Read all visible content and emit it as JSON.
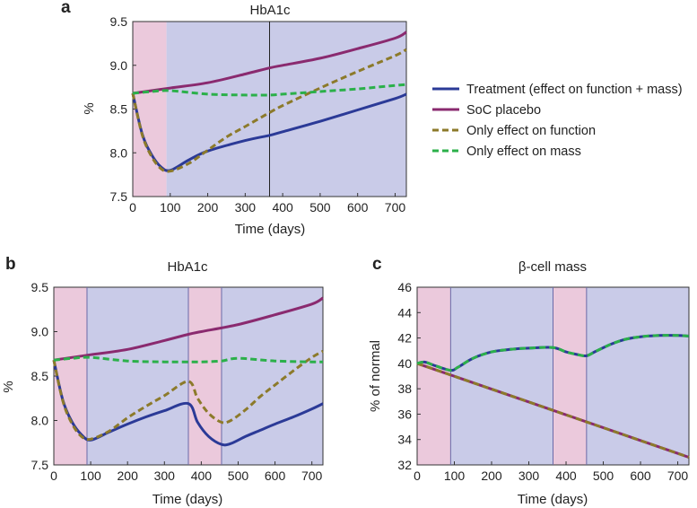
{
  "colors": {
    "treatment": "#2b3a97",
    "placebo": "#8a2a6f",
    "function_only": "#8c7a2a",
    "mass_only": "#2bb04a",
    "shade_pink": "#ebc9dc",
    "shade_blue": "#c9cbe8"
  },
  "legend": {
    "items": [
      {
        "key": "treatment",
        "label": "Treatment (effect on function + mass)",
        "dashed": false
      },
      {
        "key": "placebo",
        "label": "SoC placebo",
        "dashed": false
      },
      {
        "key": "function_only",
        "label": "Only effect on function",
        "dashed": true
      },
      {
        "key": "mass_only",
        "label": "Only effect on mass",
        "dashed": true
      }
    ]
  },
  "chart_data": [
    {
      "panel_label": "a",
      "type": "line",
      "title": "HbA1c",
      "xlabel": "Time (days)",
      "ylabel": "%",
      "xlim": [
        0,
        730
      ],
      "ylim": [
        7.5,
        9.5
      ],
      "x_ticks": [
        "0",
        "100",
        "200",
        "300",
        "400",
        "500",
        "600",
        "700"
      ],
      "y_ticks": [
        "7.5",
        "8.0",
        "8.5",
        "9.0",
        "9.5"
      ],
      "shaded_regions": [
        {
          "x": [
            0,
            90
          ],
          "color": "pink"
        },
        {
          "x": [
            90,
            730
          ],
          "color": "blue"
        }
      ],
      "vlines": [
        365
      ],
      "series": [
        {
          "key": "treatment",
          "x": [
            0,
            25,
            50,
            75,
            100,
            150,
            200,
            300,
            365,
            400,
            500,
            600,
            700,
            730
          ],
          "y": [
            8.68,
            8.22,
            7.98,
            7.84,
            7.8,
            7.92,
            8.02,
            8.14,
            8.2,
            8.24,
            8.36,
            8.49,
            8.62,
            8.67
          ]
        },
        {
          "key": "placebo",
          "x": [
            0,
            100,
            200,
            300,
            365,
            400,
            500,
            600,
            700,
            730
          ],
          "y": [
            8.68,
            8.74,
            8.8,
            8.9,
            8.97,
            9.0,
            9.08,
            9.19,
            9.31,
            9.38
          ]
        },
        {
          "key": "function_only",
          "x": [
            0,
            25,
            50,
            75,
            100,
            150,
            200,
            250,
            300,
            365,
            400,
            500,
            600,
            700,
            730
          ],
          "y": [
            8.68,
            8.21,
            7.96,
            7.82,
            7.79,
            7.88,
            8.03,
            8.18,
            8.3,
            8.46,
            8.54,
            8.74,
            8.93,
            9.11,
            9.18
          ]
        },
        {
          "key": "mass_only",
          "x": [
            0,
            50,
            100,
            200,
            300,
            365,
            400,
            500,
            600,
            700,
            730
          ],
          "y": [
            8.68,
            8.7,
            8.71,
            8.67,
            8.66,
            8.66,
            8.67,
            8.7,
            8.73,
            8.77,
            8.78
          ]
        }
      ]
    },
    {
      "panel_label": "b",
      "type": "line",
      "title": "HbA1c",
      "xlabel": "Time (days)",
      "ylabel": "%",
      "xlim": [
        0,
        730
      ],
      "ylim": [
        7.5,
        9.5
      ],
      "x_ticks": [
        "0",
        "100",
        "200",
        "300",
        "400",
        "500",
        "600",
        "700"
      ],
      "y_ticks": [
        "7.5",
        "8.0",
        "8.5",
        "9.0",
        "9.5"
      ],
      "shaded_regions": [
        {
          "x": [
            0,
            90
          ],
          "color": "pink"
        },
        {
          "x": [
            90,
            365
          ],
          "color": "blue"
        },
        {
          "x": [
            365,
            455
          ],
          "color": "pink"
        },
        {
          "x": [
            455,
            730
          ],
          "color": "blue"
        }
      ],
      "vlines": [
        90,
        365,
        455
      ],
      "series": [
        {
          "key": "treatment",
          "x": [
            0,
            25,
            50,
            75,
            100,
            150,
            200,
            250,
            300,
            365,
            390,
            420,
            455,
            480,
            520,
            560,
            600,
            650,
            700,
            730
          ],
          "y": [
            8.68,
            8.22,
            7.98,
            7.84,
            7.78,
            7.87,
            7.96,
            8.04,
            8.11,
            8.19,
            7.98,
            7.82,
            7.73,
            7.74,
            7.82,
            7.89,
            7.96,
            8.04,
            8.13,
            8.19
          ]
        },
        {
          "key": "placebo",
          "x": [
            0,
            100,
            200,
            300,
            365,
            400,
            500,
            600,
            700,
            730
          ],
          "y": [
            8.68,
            8.74,
            8.8,
            8.9,
            8.97,
            9.0,
            9.08,
            9.19,
            9.31,
            9.38
          ]
        },
        {
          "key": "function_only",
          "x": [
            0,
            25,
            50,
            75,
            100,
            150,
            200,
            250,
            300,
            365,
            390,
            420,
            455,
            480,
            520,
            560,
            600,
            650,
            700,
            730
          ],
          "y": [
            8.68,
            8.21,
            7.96,
            7.82,
            7.79,
            7.88,
            8.03,
            8.16,
            8.28,
            8.44,
            8.25,
            8.08,
            7.98,
            8.0,
            8.12,
            8.27,
            8.4,
            8.56,
            8.71,
            8.78
          ]
        },
        {
          "key": "mass_only",
          "x": [
            0,
            50,
            100,
            200,
            300,
            365,
            400,
            455,
            500,
            600,
            700,
            730
          ],
          "y": [
            8.68,
            8.7,
            8.71,
            8.67,
            8.66,
            8.66,
            8.66,
            8.67,
            8.7,
            8.67,
            8.66,
            8.66
          ]
        }
      ]
    },
    {
      "panel_label": "c",
      "type": "line",
      "title": "β-cell mass",
      "xlabel": "Time (days)",
      "ylabel": "% of normal",
      "xlim": [
        0,
        730
      ],
      "ylim": [
        32,
        46
      ],
      "x_ticks": [
        "0",
        "100",
        "200",
        "300",
        "400",
        "500",
        "600",
        "700"
      ],
      "y_ticks": [
        "32",
        "34",
        "36",
        "38",
        "40",
        "42",
        "44",
        "46"
      ],
      "shaded_regions": [
        {
          "x": [
            0,
            90
          ],
          "color": "pink"
        },
        {
          "x": [
            90,
            365
          ],
          "color": "blue"
        },
        {
          "x": [
            365,
            455
          ],
          "color": "pink"
        },
        {
          "x": [
            455,
            730
          ],
          "color": "blue"
        }
      ],
      "vlines": [
        90,
        365,
        455
      ],
      "series": [
        {
          "key": "treatment",
          "x": [
            0,
            20,
            50,
            90,
            110,
            150,
            200,
            250,
            300,
            365,
            400,
            430,
            455,
            480,
            520,
            560,
            600,
            650,
            700,
            730
          ],
          "y": [
            40.0,
            40.1,
            39.8,
            39.45,
            39.7,
            40.4,
            40.9,
            41.1,
            41.2,
            41.25,
            40.9,
            40.7,
            40.6,
            40.95,
            41.5,
            41.9,
            42.1,
            42.2,
            42.2,
            42.15
          ]
        },
        {
          "key": "placebo",
          "x": [
            0,
            730
          ],
          "y": [
            40.0,
            32.6
          ]
        },
        {
          "key": "function_only",
          "x": [
            0,
            730
          ],
          "y": [
            40.0,
            32.6
          ]
        },
        {
          "key": "mass_only",
          "x": [
            0,
            20,
            50,
            90,
            110,
            150,
            200,
            250,
            300,
            365,
            400,
            430,
            455,
            480,
            520,
            560,
            600,
            650,
            700,
            730
          ],
          "y": [
            40.0,
            40.1,
            39.8,
            39.45,
            39.7,
            40.4,
            40.9,
            41.1,
            41.2,
            41.25,
            40.9,
            40.7,
            40.6,
            40.95,
            41.5,
            41.9,
            42.1,
            42.2,
            42.2,
            42.15
          ]
        }
      ]
    }
  ]
}
